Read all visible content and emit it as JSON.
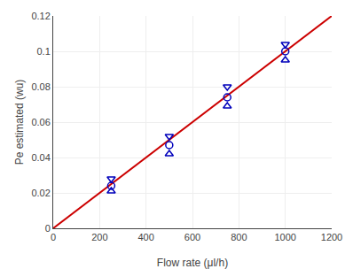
{
  "chart_data": {
    "type": "scatter",
    "xlabel": "Flow rate (μl/h)",
    "ylabel": "Pe estimated (wu)",
    "xlim": [
      0,
      1200
    ],
    "ylim": [
      0,
      0.12
    ],
    "xticks": [
      0,
      200,
      400,
      600,
      800,
      1000,
      1200
    ],
    "yticks": [
      0,
      0.02,
      0.04,
      0.06,
      0.08,
      0.1,
      0.12
    ],
    "grid": true,
    "series": [
      {
        "type": "line",
        "line_style": "solid",
        "color": "#cc0000",
        "x": [
          0,
          1200
        ],
        "values": [
          0,
          0.12
        ]
      },
      {
        "type": "scatter",
        "marker": "circle",
        "color": "#0000bb",
        "x": [
          250,
          500,
          750,
          1000
        ],
        "values": [
          0.024,
          0.047,
          0.074,
          0.1
        ]
      },
      {
        "type": "scatter",
        "marker": "triangle-down",
        "color": "#0000bb",
        "x": [
          250,
          500,
          750,
          1000
        ],
        "values": [
          0.028,
          0.052,
          0.08,
          0.104
        ]
      },
      {
        "type": "scatter",
        "marker": "triangle-up",
        "color": "#0000bb",
        "x": [
          250,
          500,
          750,
          1000
        ],
        "values": [
          0.021,
          0.042,
          0.069,
          0.095
        ]
      }
    ]
  }
}
